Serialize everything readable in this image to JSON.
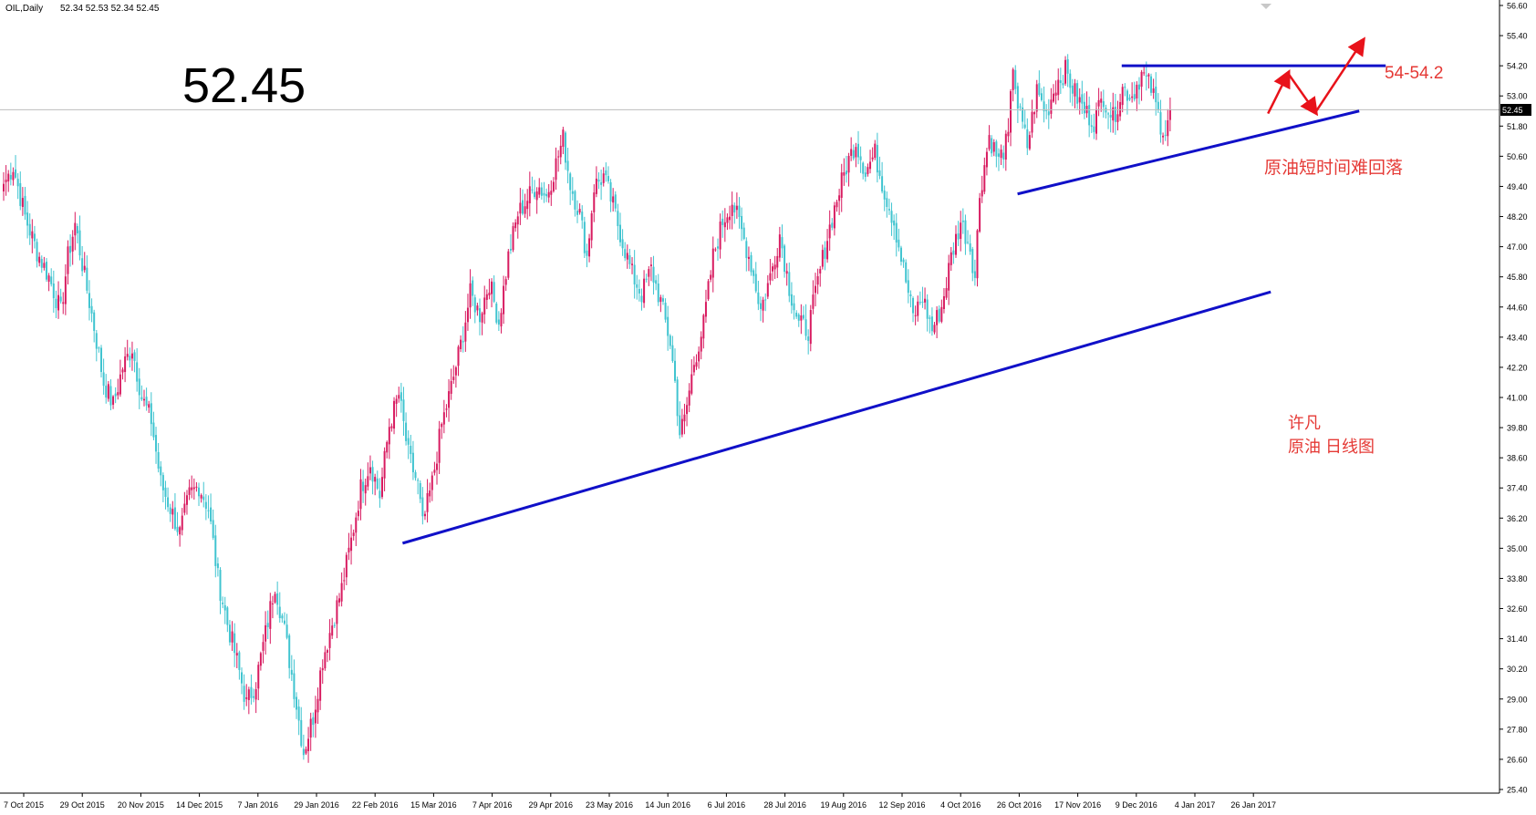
{
  "header": {
    "symbol_timeframe": "OIL,Daily",
    "ohlc": "52.34 52.53 52.34 52.45"
  },
  "big_price": "52.45",
  "annotations": {
    "target": "54-54.2",
    "comment": "原油短时间难回落",
    "author": "许凡",
    "subtitle": "原油  日线图"
  },
  "colors": {
    "background": "#ffffff",
    "bull_candle": "#d81b60",
    "bear_candle": "#40c4d0",
    "trendline": "#1010c8",
    "arrow": "#e8121a",
    "annotation_text": "#e53935",
    "axis": "#000000",
    "price_line": "#bdbdbd",
    "current_price_tag_bg": "#000000"
  },
  "chart_data": {
    "type": "candlestick",
    "symbol": "OIL",
    "timeframe": "Daily",
    "current_price": 52.45,
    "ylim": [
      25.4,
      56.6
    ],
    "y_ticks": [
      "56.60",
      "55.40",
      "54.20",
      "53.00",
      "51.80",
      "50.60",
      "49.40",
      "48.20",
      "47.00",
      "45.80",
      "44.60",
      "43.40",
      "42.20",
      "41.00",
      "39.80",
      "38.60",
      "37.40",
      "36.20",
      "35.00",
      "33.80",
      "32.60",
      "31.40",
      "30.20",
      "29.00",
      "27.80",
      "26.60",
      "25.40"
    ],
    "x_ticks": [
      "7 Oct 2015",
      "29 Oct 2015",
      "20 Nov 2015",
      "14 Dec 2015",
      "7 Jan 2016",
      "29 Jan 2016",
      "22 Feb 2016",
      "15 Mar 2016",
      "7 Apr 2016",
      "29 Apr 2016",
      "23 May 2016",
      "14 Jun 2016",
      "6 Jul 2016",
      "28 Jul 2016",
      "19 Aug 2016",
      "12 Sep 2016",
      "4 Oct 2016",
      "26 Oct 2016",
      "17 Nov 2016",
      "9 Dec 2016",
      "4 Jan 2017",
      "26 Jan 2017"
    ],
    "close_path": [
      [
        0,
        49.5
      ],
      [
        4,
        50.2
      ],
      [
        9,
        48.2
      ],
      [
        14,
        46.8
      ],
      [
        19,
        45.8
      ],
      [
        24,
        44.4
      ],
      [
        27,
        46.6
      ],
      [
        30,
        47.9
      ],
      [
        34,
        45.8
      ],
      [
        38,
        43.8
      ],
      [
        42,
        41.6
      ],
      [
        46,
        40.7
      ],
      [
        50,
        42.2
      ],
      [
        54,
        43.0
      ],
      [
        58,
        41.0
      ],
      [
        62,
        40.1
      ],
      [
        66,
        37.6
      ],
      [
        70,
        36.6
      ],
      [
        74,
        35.6
      ],
      [
        78,
        37.1
      ],
      [
        82,
        37.5
      ],
      [
        86,
        36.6
      ],
      [
        90,
        33.8
      ],
      [
        94,
        32.0
      ],
      [
        98,
        30.5
      ],
      [
        102,
        28.8
      ],
      [
        106,
        29.7
      ],
      [
        110,
        31.6
      ],
      [
        114,
        33.6
      ],
      [
        118,
        31.7
      ],
      [
        122,
        29.4
      ],
      [
        126,
        26.9
      ],
      [
        130,
        28.3
      ],
      [
        134,
        30.6
      ],
      [
        138,
        32.0
      ],
      [
        142,
        33.4
      ],
      [
        146,
        35.3
      ],
      [
        150,
        37.4
      ],
      [
        154,
        38.4
      ],
      [
        158,
        37.1
      ],
      [
        162,
        39.9
      ],
      [
        166,
        41.1
      ],
      [
        170,
        38.7
      ],
      [
        174,
        37.5
      ],
      [
        176,
        35.9
      ],
      [
        180,
        37.6
      ],
      [
        184,
        39.9
      ],
      [
        188,
        41.4
      ],
      [
        192,
        43.1
      ],
      [
        196,
        45.1
      ],
      [
        200,
        44.3
      ],
      [
        204,
        45.6
      ],
      [
        208,
        44.0
      ],
      [
        212,
        46.6
      ],
      [
        216,
        48.3
      ],
      [
        220,
        48.9
      ],
      [
        224,
        49.5
      ],
      [
        228,
        49.0
      ],
      [
        232,
        50.3
      ],
      [
        235,
        51.3
      ],
      [
        238,
        49.5
      ],
      [
        242,
        48.3
      ],
      [
        245,
        46.6
      ],
      [
        248,
        49.4
      ],
      [
        252,
        49.8
      ],
      [
        256,
        48.6
      ],
      [
        260,
        47.2
      ],
      [
        264,
        45.9
      ],
      [
        268,
        45.1
      ],
      [
        272,
        46.1
      ],
      [
        276,
        44.8
      ],
      [
        280,
        43.2
      ],
      [
        282,
        41.6
      ],
      [
        284,
        39.6
      ],
      [
        286,
        40.1
      ],
      [
        290,
        42.4
      ],
      [
        294,
        43.9
      ],
      [
        298,
        46.6
      ],
      [
        302,
        48.0
      ],
      [
        306,
        48.8
      ],
      [
        310,
        47.6
      ],
      [
        314,
        46.3
      ],
      [
        318,
        44.5
      ],
      [
        322,
        45.8
      ],
      [
        326,
        47.5
      ],
      [
        330,
        45.4
      ],
      [
        334,
        43.9
      ],
      [
        338,
        43.7
      ],
      [
        342,
        45.6
      ],
      [
        346,
        47.4
      ],
      [
        350,
        48.9
      ],
      [
        354,
        50.2
      ],
      [
        358,
        51.2
      ],
      [
        362,
        50.0
      ],
      [
        366,
        50.7
      ],
      [
        370,
        49.2
      ],
      [
        374,
        48.0
      ],
      [
        378,
        46.1
      ],
      [
        382,
        44.2
      ],
      [
        386,
        45.0
      ],
      [
        390,
        43.7
      ],
      [
        394,
        44.6
      ],
      [
        398,
        46.6
      ],
      [
        402,
        48.0
      ],
      [
        406,
        47.0
      ],
      [
        408,
        45.8
      ],
      [
        410,
        49.1
      ],
      [
        414,
        51.4
      ],
      [
        418,
        50.4
      ],
      [
        422,
        51.3
      ],
      [
        424,
        54.3
      ],
      [
        426,
        52.6
      ],
      [
        430,
        51.0
      ],
      [
        434,
        53.2
      ],
      [
        438,
        52.3
      ],
      [
        442,
        53.5
      ],
      [
        446,
        54.0
      ],
      [
        450,
        53.1
      ],
      [
        454,
        52.4
      ],
      [
        458,
        52.0
      ],
      [
        462,
        53.0
      ],
      [
        466,
        52.1
      ],
      [
        470,
        53.3
      ],
      [
        474,
        53.0
      ],
      [
        478,
        53.9
      ],
      [
        482,
        53.3
      ],
      [
        486,
        51.9
      ],
      [
        488,
        51.6
      ],
      [
        490,
        52.45
      ]
    ],
    "trendlines": [
      {
        "from": [
          "15 Mar 2016",
          35.2
        ],
        "to": [
          "26 Jan 2017",
          45.2
        ]
      },
      {
        "from": [
          "17 Nov 2016",
          49.1
        ],
        "to": [
          "26 Jan 2017 +",
          52.4
        ]
      },
      {
        "from": [
          "9 Dec 2016",
          54.2
        ],
        "to": [
          "26 Jan 2017 +",
          54.2
        ]
      }
    ],
    "target_zone": [
      54.0,
      54.2
    ],
    "grid": false,
    "legend": "none"
  }
}
